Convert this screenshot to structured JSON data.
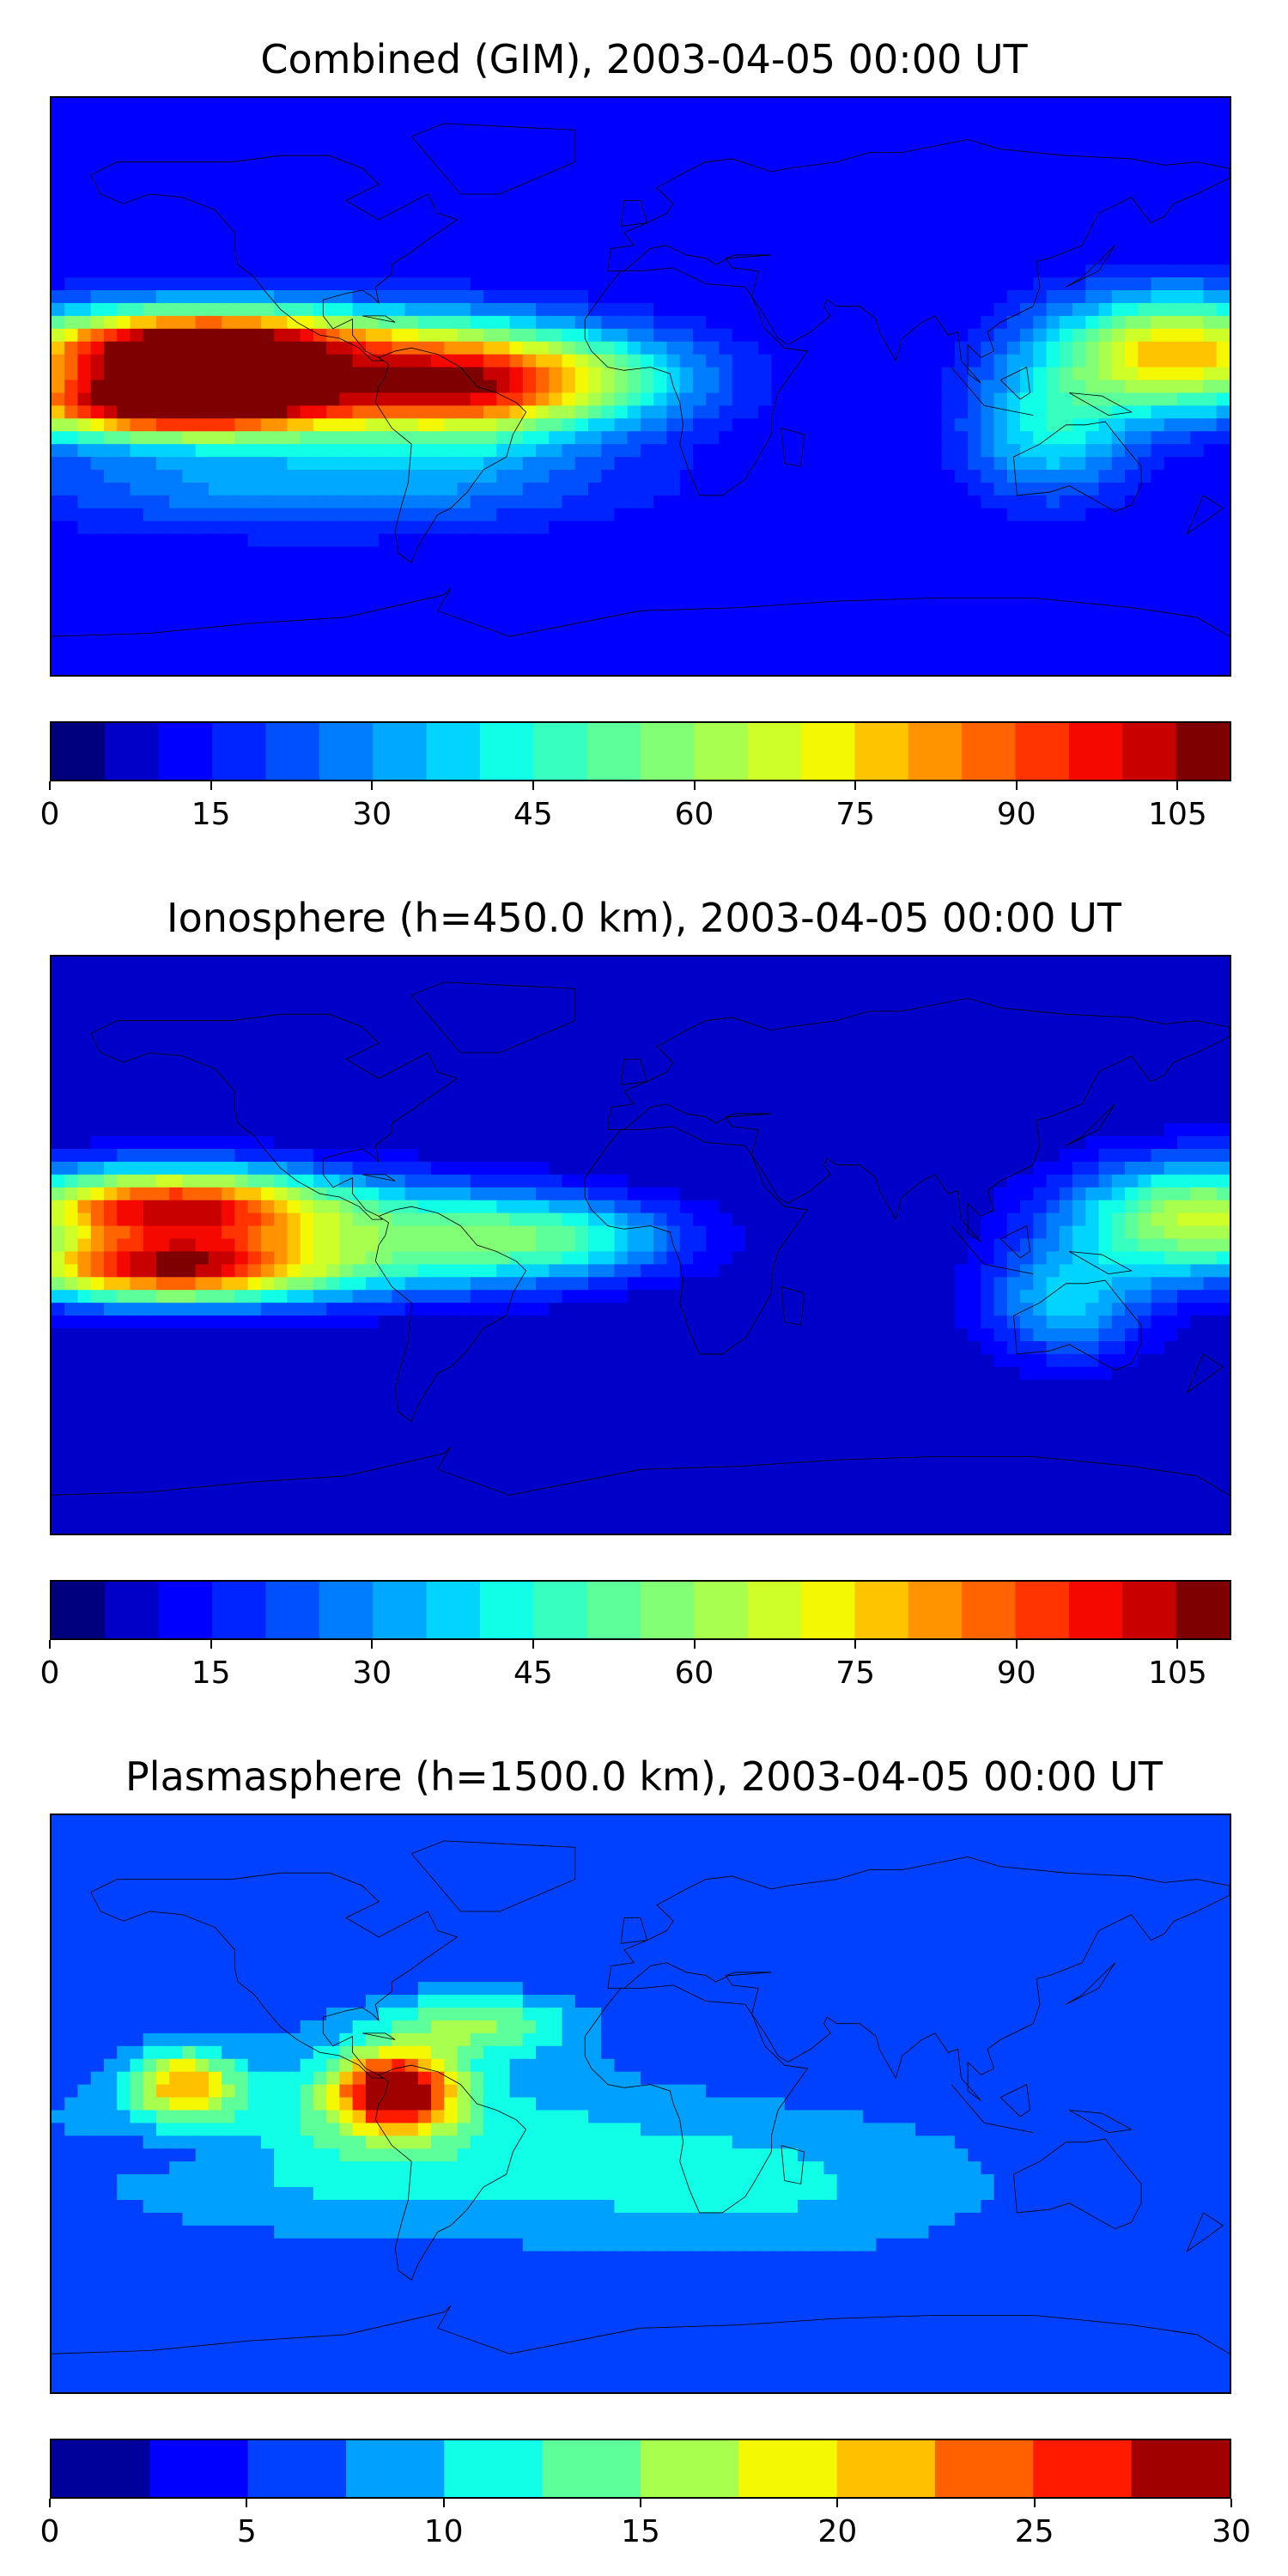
{
  "panels": [
    {
      "title": "Combined (GIM), 2003-04-05 00:00 UT",
      "colorbar": {
        "min": 0,
        "max": 110,
        "levels": 22,
        "tick_values": [
          0,
          15,
          30,
          45,
          60,
          75,
          90,
          105
        ],
        "tick_labels": [
          "0",
          "15",
          "30",
          "45",
          "60",
          "75",
          "90",
          "105"
        ]
      },
      "field": {
        "background": 10,
        "blobs": [
          {
            "lon": -135,
            "lat": 12,
            "rx": 55,
            "ry": 12,
            "amp": 95
          },
          {
            "lon": -140,
            "lat": -6,
            "rx": 55,
            "ry": 10,
            "amp": 90
          },
          {
            "lon": -110,
            "lat": 4,
            "rx": 80,
            "ry": 18,
            "amp": 35
          },
          {
            "lon": -55,
            "lat": 0,
            "rx": 35,
            "ry": 18,
            "amp": 50
          },
          {
            "lon": -20,
            "lat": 2,
            "rx": 40,
            "ry": 15,
            "amp": 38
          },
          {
            "lon": 165,
            "lat": 10,
            "rx": 40,
            "ry": 18,
            "amp": 70
          },
          {
            "lon": 125,
            "lat": -15,
            "rx": 25,
            "ry": 20,
            "amp": 30
          },
          {
            "lon": -100,
            "lat": -30,
            "rx": 90,
            "ry": 15,
            "amp": 22
          }
        ]
      }
    },
    {
      "title": "Ionosphere  (h=450.0 km), 2003-04-05 00:00 UT",
      "colorbar": {
        "min": 0,
        "max": 110,
        "levels": 22,
        "tick_values": [
          0,
          15,
          30,
          45,
          60,
          75,
          90,
          105
        ],
        "tick_labels": [
          "0",
          "15",
          "30",
          "45",
          "60",
          "75",
          "90",
          "105"
        ]
      },
      "field": {
        "background": 5,
        "blobs": [
          {
            "lon": -145,
            "lat": 12,
            "rx": 50,
            "ry": 12,
            "amp": 80
          },
          {
            "lon": -145,
            "lat": -8,
            "rx": 50,
            "ry": 10,
            "amp": 78
          },
          {
            "lon": -110,
            "lat": 2,
            "rx": 75,
            "ry": 18,
            "amp": 30
          },
          {
            "lon": -50,
            "lat": 2,
            "rx": 40,
            "ry": 15,
            "amp": 28
          },
          {
            "lon": -15,
            "lat": 2,
            "rx": 35,
            "ry": 12,
            "amp": 22
          },
          {
            "lon": 172,
            "lat": 8,
            "rx": 40,
            "ry": 18,
            "amp": 62
          },
          {
            "lon": 130,
            "lat": -18,
            "rx": 25,
            "ry": 18,
            "amp": 30
          }
        ]
      }
    },
    {
      "title": "Plasmasphere (h=1500.0 km), 2003-04-05 00:00 UT",
      "colorbar": {
        "min": 0,
        "max": 30,
        "levels": 12,
        "tick_values": [
          0,
          5,
          10,
          15,
          20,
          25,
          30
        ],
        "tick_labels": [
          "0",
          "5",
          "10",
          "15",
          "20",
          "25",
          "30"
        ]
      },
      "field": {
        "background": 5,
        "blobs": [
          {
            "lon": -75,
            "lat": 4,
            "rx": 18,
            "ry": 12,
            "amp": 24
          },
          {
            "lon": -140,
            "lat": 6,
            "rx": 15,
            "ry": 10,
            "amp": 14
          },
          {
            "lon": -90,
            "lat": -10,
            "rx": 90,
            "ry": 30,
            "amp": 7
          },
          {
            "lon": -50,
            "lat": 25,
            "rx": 30,
            "ry": 10,
            "amp": 9
          },
          {
            "lon": 40,
            "lat": -25,
            "rx": 80,
            "ry": 25,
            "amp": 5
          },
          {
            "lon": -140,
            "lat": -15,
            "rx": 30,
            "ry": 8,
            "amp": -3
          }
        ]
      }
    }
  ],
  "jet_colors": [
    "#00007f",
    "#0000c8",
    "#0000ff",
    "#0024ff",
    "#0050ff",
    "#007cff",
    "#00a8ff",
    "#00d4ff",
    "#10ffe6",
    "#36ffc0",
    "#5cff9a",
    "#82ff74",
    "#a8ff4e",
    "#ceff28",
    "#f4f802",
    "#ffc400",
    "#ff9400",
    "#ff6400",
    "#ff3400",
    "#f40800",
    "#c80000",
    "#7f0000"
  ],
  "jet_colors_12": [
    "#00009a",
    "#0000ff",
    "#0040ff",
    "#00a0ff",
    "#10ffe6",
    "#5cff9a",
    "#a8ff4e",
    "#f4f802",
    "#ffc000",
    "#ff6000",
    "#ff1a00",
    "#a00000"
  ],
  "coastline_color": "#000000"
}
